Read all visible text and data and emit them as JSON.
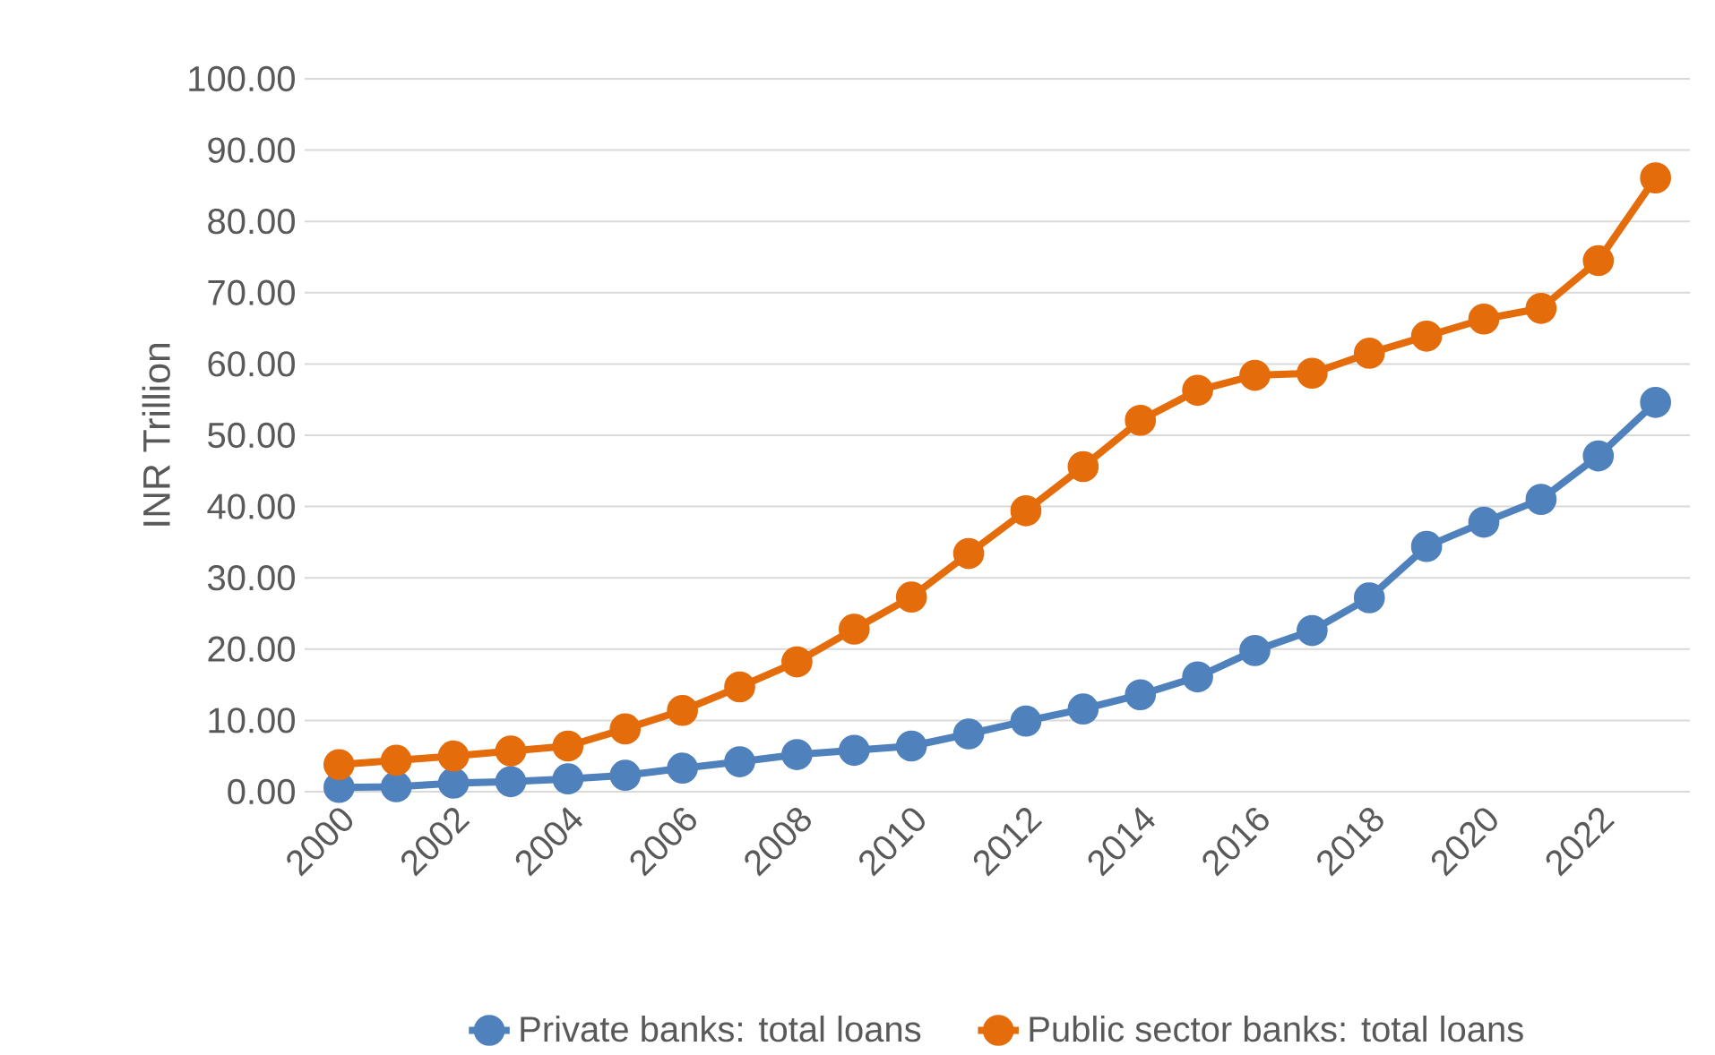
{
  "chart_data": {
    "type": "line",
    "ylabel": "INR Trillion",
    "x": [
      2000,
      2001,
      2002,
      2003,
      2004,
      2005,
      2006,
      2007,
      2008,
      2009,
      2010,
      2011,
      2012,
      2013,
      2014,
      2015,
      2016,
      2017,
      2018,
      2019,
      2020,
      2021,
      2022,
      2023
    ],
    "series": [
      {
        "name": "Private banks: total loans",
        "color": "#4f81bd",
        "values": [
          0.6,
          0.7,
          1.2,
          1.4,
          1.8,
          2.3,
          3.3,
          4.2,
          5.2,
          5.8,
          6.4,
          8.1,
          9.9,
          11.6,
          13.6,
          16.1,
          19.8,
          22.6,
          27.2,
          34.4,
          37.8,
          41.0,
          47.1,
          54.6
        ]
      },
      {
        "name": "Public sector banks: total loans",
        "color": "#e46c0a",
        "values": [
          3.8,
          4.4,
          5.0,
          5.7,
          6.4,
          8.8,
          11.4,
          14.7,
          18.2,
          22.8,
          27.3,
          33.4,
          39.4,
          45.6,
          52.1,
          56.3,
          58.4,
          58.7,
          61.5,
          63.9,
          66.3,
          67.8,
          74.5,
          86.1
        ]
      }
    ],
    "xlim": [
      1999.4,
      2023.6
    ],
    "xticks": [
      2000,
      2002,
      2004,
      2006,
      2008,
      2010,
      2012,
      2014,
      2016,
      2018,
      2020,
      2022
    ],
    "ylim": [
      0,
      100
    ],
    "yticks": [
      {
        "value": 0,
        "label": "0.00"
      },
      {
        "value": 10,
        "label": "10.00"
      },
      {
        "value": 20,
        "label": "20.00"
      },
      {
        "value": 30,
        "label": "30.00"
      },
      {
        "value": 40,
        "label": "40.00"
      },
      {
        "value": 50,
        "label": "50.00"
      },
      {
        "value": 60,
        "label": "60.00"
      },
      {
        "value": 70,
        "label": "70.00"
      },
      {
        "value": 80,
        "label": "80.00"
      },
      {
        "value": 90,
        "label": "90.00"
      },
      {
        "value": 100,
        "label": "100.00"
      }
    ],
    "grid": "y",
    "legend": "bottom",
    "marker": "circle",
    "line_style": "solid"
  }
}
